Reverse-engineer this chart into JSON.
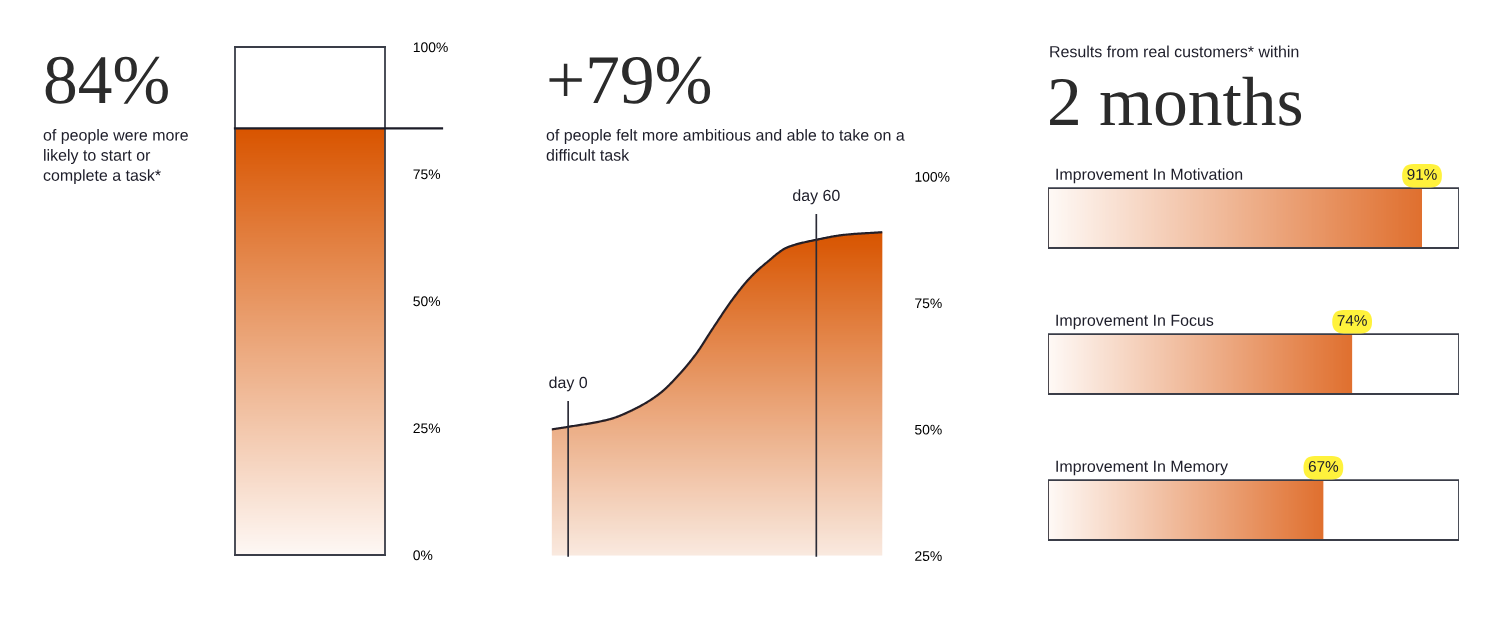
{
  "chart_data": [
    {
      "type": "bar",
      "title": "84%",
      "subtitle": "of people were more\nlikely to start or\ncomplete a task*",
      "categories": [
        null
      ],
      "values": [
        84
      ],
      "color": "#d95500",
      "ylim": [
        0,
        100
      ],
      "yticks": [
        {
          "value": 0,
          "label": "0%"
        },
        {
          "value": 25,
          "label": "25%"
        },
        {
          "value": 50,
          "label": "50%"
        },
        {
          "value": 75,
          "label": "75%"
        },
        {
          "value": 100,
          "label": "100%"
        }
      ],
      "ref_lines": [
        {
          "axis": "y",
          "value": 84,
          "color": "#1c1c28"
        }
      ],
      "tick_labels": "y"
    },
    {
      "type": "area",
      "title": "+79%",
      "subtitle": "of people felt more ambitious and able to take on a\ndifficult task",
      "x": [
        -4,
        0,
        10,
        16,
        22,
        27,
        31,
        35,
        40,
        44,
        48,
        53,
        60,
        67,
        76
      ],
      "values": [
        50,
        50.5,
        52,
        54,
        57,
        61,
        65,
        70,
        76,
        80,
        83,
        86,
        87.5,
        88.5,
        89
      ],
      "color": "#d95500",
      "xlim": [
        -4,
        76
      ],
      "ylim": [
        25,
        100
      ],
      "yticks": [
        {
          "value": 25,
          "label": "25%"
        },
        {
          "value": 50,
          "label": "50%"
        },
        {
          "value": 75,
          "label": "75%"
        },
        {
          "value": 100,
          "label": "100%"
        }
      ],
      "ref_lines": [
        {
          "axis": "x",
          "value": 0,
          "label": "day 0",
          "color": "#2a2b36"
        },
        {
          "axis": "x",
          "value": 60,
          "label": "day 60",
          "color": "#2a2b36"
        }
      ],
      "tick_labels": "y"
    },
    {
      "type": "bar",
      "orientation": "horizontal",
      "title": "Results from real customers* within",
      "subtitle": "2 months",
      "categories": [
        "Improvement In Motivation",
        "Improvement In Focus",
        "Improvement In Memory"
      ],
      "values": [
        91,
        74,
        67
      ],
      "value_labels": [
        "91%",
        "74%",
        "67%"
      ],
      "color": "#e0702f",
      "xlim": [
        0,
        100
      ],
      "tick_labels": false
    }
  ]
}
